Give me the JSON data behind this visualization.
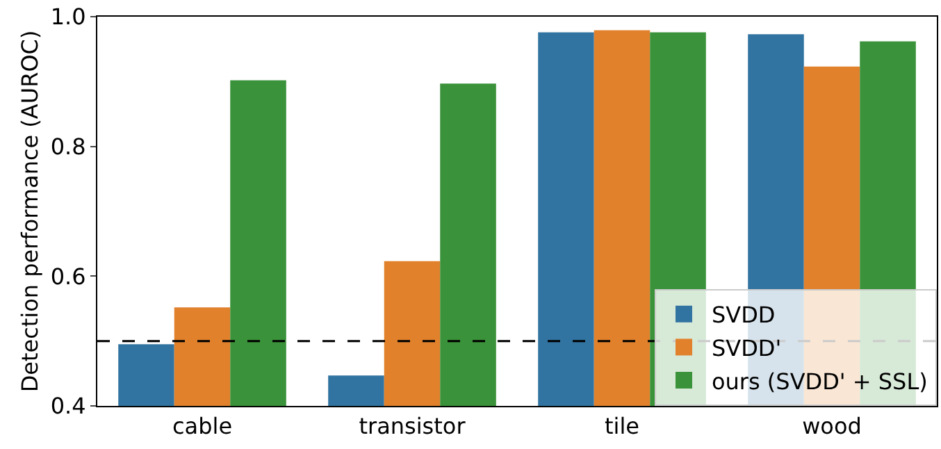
{
  "chart_data": {
    "type": "bar",
    "ylabel": "Detection performance (AUROC)",
    "categories": [
      "cable",
      "transistor",
      "tile",
      "wood"
    ],
    "series": [
      {
        "name": "SVDD",
        "color": "#3274a1",
        "values": [
          0.495,
          0.447,
          0.976,
          0.973
        ]
      },
      {
        "name": "SVDD'",
        "color": "#e1812c",
        "values": [
          0.552,
          0.623,
          0.979,
          0.923
        ]
      },
      {
        "name": "ours (SVDD' + SSL)",
        "color": "#3a923a",
        "values": [
          0.902,
          0.897,
          0.976,
          0.962
        ]
      }
    ],
    "ylim": [
      0.4,
      1.0
    ],
    "yticks": [
      0.4,
      0.6,
      0.8,
      {
        "value": 1,
        "label": "1.0"
      }
    ],
    "ref_lines": [
      {
        "axis": "y",
        "value": 0.5,
        "color": "#000000",
        "line_style": "dashed"
      }
    ],
    "grid": false,
    "legend": "bottom right"
  }
}
